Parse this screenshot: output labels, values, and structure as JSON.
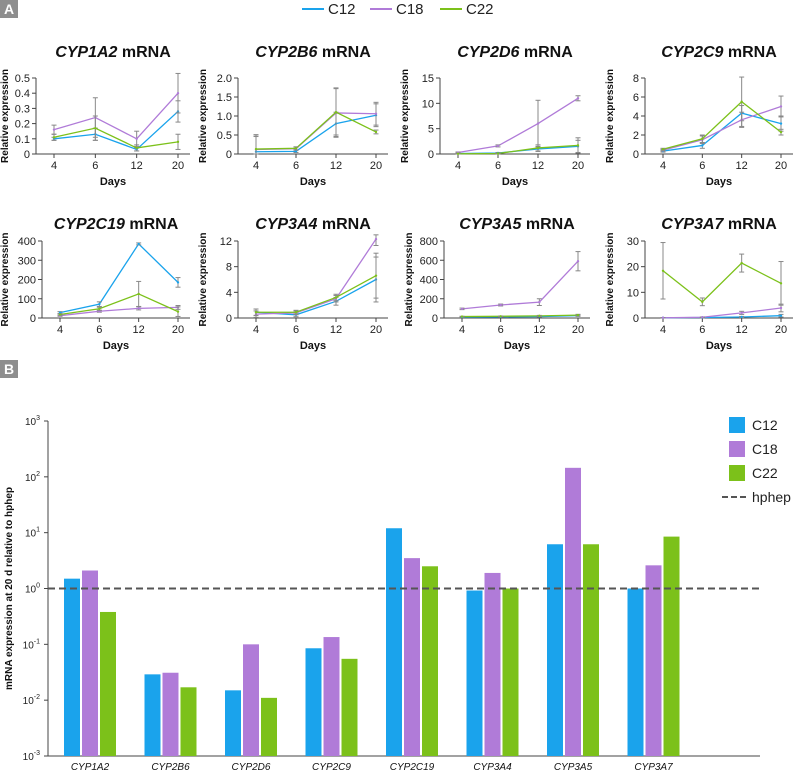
{
  "colors": {
    "C12": "#1aa3ec",
    "C18": "#b07bd8",
    "C22": "#7cc11a",
    "hphep": "#555555",
    "panel_label_bg": "#8e8e8e",
    "error_bar": "#888888"
  },
  "panel_a": {
    "label": "A",
    "legend": [
      "C12",
      "C18",
      "C22"
    ]
  },
  "panel_b": {
    "label": "B"
  },
  "chart_data": [
    {
      "type": "line",
      "gene": "CYP1A2",
      "title_suffix": " mRNA",
      "xlabel": "Days",
      "ylabel": "Relative expression",
      "x": [
        4,
        6,
        12,
        20
      ],
      "ylim": [
        0,
        0.5
      ],
      "yticks": [
        "0",
        "0.1",
        "0.2",
        "0.3",
        "0.4",
        "0.5"
      ],
      "series": [
        {
          "name": "C12",
          "values": [
            0.1,
            0.13,
            0.03,
            0.28
          ],
          "errors": [
            0.01,
            0.04,
            0.01,
            0.07
          ]
        },
        {
          "name": "C18",
          "values": [
            0.16,
            0.24,
            0.1,
            0.4
          ],
          "errors": [
            0.03,
            0.13,
            0.05,
            0.13
          ]
        },
        {
          "name": "C22",
          "values": [
            0.11,
            0.17,
            0.04,
            0.08
          ],
          "errors": [
            0.02,
            0.08,
            0.02,
            0.05
          ]
        }
      ]
    },
    {
      "type": "line",
      "gene": "CYP2B6",
      "title_suffix": " mRNA",
      "xlabel": "Days",
      "ylabel": "Relative expression",
      "x": [
        4,
        6,
        12,
        20
      ],
      "ylim": [
        0,
        2.0
      ],
      "yticks": [
        "0",
        "0.5",
        "1.0",
        "1.5",
        "2.0"
      ],
      "series": [
        {
          "name": "C12",
          "values": [
            0.06,
            0.07,
            0.8,
            1.02
          ],
          "errors": [
            0.4,
            0.03,
            0.3,
            0.3
          ]
        },
        {
          "name": "C18",
          "values": [
            0.12,
            0.14,
            1.08,
            1.06
          ],
          "errors": [
            0.38,
            0.04,
            0.64,
            0.3
          ]
        },
        {
          "name": "C22",
          "values": [
            0.13,
            0.15,
            1.1,
            0.58
          ],
          "errors": [
            0.38,
            0.04,
            0.64,
            0.05
          ]
        }
      ]
    },
    {
      "type": "line",
      "gene": "CYP2D6",
      "title_suffix": " mRNA",
      "xlabel": "Days",
      "ylabel": "Relative expression",
      "x": [
        4,
        6,
        12,
        20
      ],
      "ylim": [
        0,
        15
      ],
      "yticks": [
        "0",
        "5",
        "10",
        "15"
      ],
      "series": [
        {
          "name": "C12",
          "values": [
            0.1,
            0.2,
            1.0,
            1.5
          ],
          "errors": [
            0.05,
            0.1,
            0.5,
            1.2
          ]
        },
        {
          "name": "C18",
          "values": [
            0.3,
            1.6,
            6.0,
            11.0
          ],
          "errors": [
            0.1,
            0.2,
            4.6,
            0.5
          ]
        },
        {
          "name": "C22",
          "values": [
            0.05,
            0.1,
            1.2,
            1.7
          ],
          "errors": [
            0.03,
            0.08,
            0.6,
            1.5
          ]
        }
      ]
    },
    {
      "type": "line",
      "gene": "CYP2C9",
      "title_suffix": " mRNA",
      "xlabel": "Days",
      "ylabel": "Relative expression",
      "x": [
        4,
        6,
        12,
        20
      ],
      "ylim": [
        0,
        8
      ],
      "yticks": [
        "0",
        "2",
        "4",
        "6",
        "8"
      ],
      "series": [
        {
          "name": "C12",
          "values": [
            0.3,
            0.9,
            4.3,
            3.2
          ],
          "errors": [
            0.1,
            0.3,
            0.8,
            0.8
          ]
        },
        {
          "name": "C18",
          "values": [
            0.4,
            1.5,
            3.6,
            5.0
          ],
          "errors": [
            0.1,
            0.4,
            0.8,
            1.1
          ]
        },
        {
          "name": "C22",
          "values": [
            0.5,
            1.6,
            5.5,
            2.3
          ],
          "errors": [
            0.1,
            0.4,
            2.6,
            0.3
          ]
        }
      ]
    },
    {
      "type": "line",
      "gene": "CYP2C19",
      "title_suffix": " mRNA",
      "xlabel": "Days",
      "ylabel": "Relative expression",
      "x": [
        4,
        6,
        12,
        20
      ],
      "ylim": [
        0,
        400
      ],
      "yticks": [
        "0",
        "100",
        "200",
        "300",
        "400"
      ],
      "series": [
        {
          "name": "C12",
          "values": [
            28,
            72,
            385,
            185
          ],
          "errors": [
            5,
            12,
            5,
            25
          ]
        },
        {
          "name": "C18",
          "values": [
            12,
            35,
            50,
            55
          ],
          "errors": [
            3,
            5,
            8,
            10
          ]
        },
        {
          "name": "C22",
          "values": [
            18,
            48,
            125,
            33
          ],
          "errors": [
            4,
            8,
            65,
            25
          ]
        }
      ]
    },
    {
      "type": "line",
      "gene": "CYP3A4",
      "title_suffix": " mRNA",
      "xlabel": "Days",
      "ylabel": "Relative expression",
      "x": [
        4,
        6,
        12,
        20
      ],
      "ylim": [
        0,
        12
      ],
      "yticks": [
        "0",
        "4",
        "8",
        "12"
      ],
      "series": [
        {
          "name": "C12",
          "values": [
            0.9,
            0.5,
            2.6,
            6.0
          ],
          "errors": [
            0.5,
            0.3,
            0.6,
            3.5
          ]
        },
        {
          "name": "C18",
          "values": [
            0.6,
            0.8,
            3.0,
            12.3
          ],
          "errors": [
            0.5,
            0.3,
            0.5,
            1.0
          ]
        },
        {
          "name": "C22",
          "values": [
            0.9,
            0.9,
            3.2,
            6.6
          ],
          "errors": [
            0.5,
            0.3,
            0.5,
            3.5
          ]
        }
      ]
    },
    {
      "type": "line",
      "gene": "CYP3A5",
      "title_suffix": " mRNA",
      "xlabel": "Days",
      "ylabel": "Relative expression",
      "x": [
        4,
        6,
        12,
        20
      ],
      "ylim": [
        0,
        800
      ],
      "yticks": [
        "0",
        "200",
        "400",
        "600",
        "800"
      ],
      "series": [
        {
          "name": "C12",
          "values": [
            10,
            12,
            15,
            25
          ],
          "errors": [
            3,
            3,
            5,
            8
          ]
        },
        {
          "name": "C18",
          "values": [
            95,
            135,
            165,
            590
          ],
          "errors": [
            8,
            10,
            35,
            100
          ]
        },
        {
          "name": "C22",
          "values": [
            15,
            18,
            22,
            30
          ],
          "errors": [
            3,
            3,
            5,
            8
          ]
        }
      ]
    },
    {
      "type": "line",
      "gene": "CYP3A7",
      "title_suffix": " mRNA",
      "xlabel": "Days",
      "ylabel": "Relative expression",
      "x": [
        4,
        6,
        12,
        20
      ],
      "ylim": [
        0,
        30
      ],
      "yticks": [
        "0",
        "10",
        "20",
        "30"
      ],
      "series": [
        {
          "name": "C12",
          "values": [
            0.1,
            0.2,
            0.4,
            0.9
          ],
          "errors": [
            0.05,
            0.1,
            0.2,
            0.5
          ]
        },
        {
          "name": "C18",
          "values": [
            0.1,
            0.3,
            2.0,
            3.9
          ],
          "errors": [
            0.05,
            0.1,
            0.6,
            1.5
          ]
        },
        {
          "name": "C22",
          "values": [
            18.4,
            6.3,
            21.4,
            13.5
          ],
          "errors": [
            11.0,
            1.5,
            3.5,
            8.5
          ]
        }
      ]
    },
    {
      "type": "bar",
      "log_scale": true,
      "ylabel": "mRNA expression at 20 d relative to hphep",
      "ylim": [
        0.001,
        1000
      ],
      "ytick_bases": [
        "10",
        "10",
        "10",
        "10",
        "10",
        "10",
        "10"
      ],
      "ytick_exps": [
        "-3",
        "-2",
        "-1",
        "0",
        "1",
        "2",
        "3"
      ],
      "categories": [
        "CYP1A2",
        "CYP2B6",
        "CYP2D6",
        "CYP2C9",
        "CYP2C19",
        "CYP3A4",
        "CYP3A5",
        "CYP3A7"
      ],
      "series": [
        {
          "name": "C12",
          "values": [
            1.5,
            0.029,
            0.015,
            0.085,
            12,
            0.92,
            6.2,
            1.0
          ]
        },
        {
          "name": "C18",
          "values": [
            2.1,
            0.031,
            0.1,
            0.135,
            3.5,
            1.9,
            145,
            2.6
          ]
        },
        {
          "name": "C22",
          "values": [
            0.38,
            0.017,
            0.011,
            0.055,
            2.5,
            1.0,
            6.2,
            8.5
          ]
        }
      ],
      "reference": {
        "name": "hphep",
        "value": 1
      },
      "legend": [
        "C12",
        "C18",
        "C22",
        "hphep"
      ]
    }
  ]
}
